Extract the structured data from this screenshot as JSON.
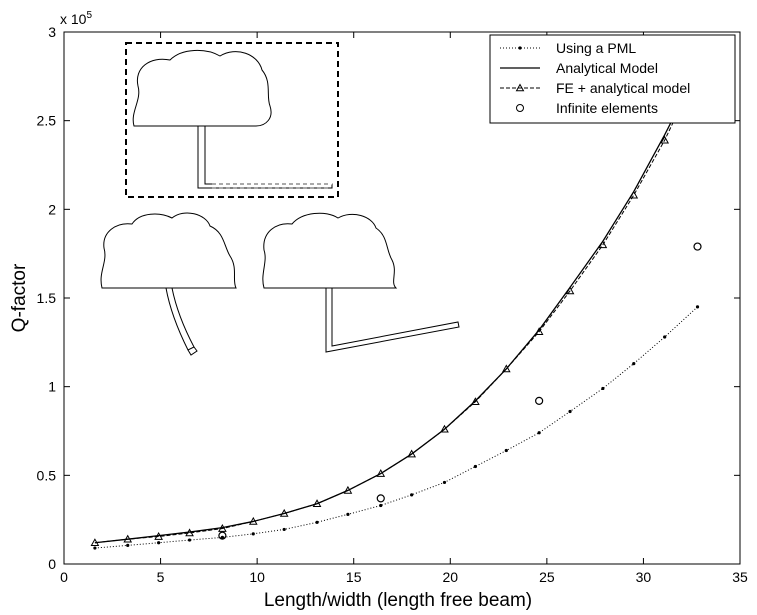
{
  "chart_data": {
    "type": "line",
    "xlabel": "Length/width (length free beam)",
    "ylabel": "Q-factor",
    "y_exponent_label": "x 10",
    "y_exponent_power": "5",
    "xlim": [
      0,
      35
    ],
    "ylim": [
      0,
      3
    ],
    "x_ticks": [
      "0",
      "5",
      "10",
      "15",
      "20",
      "25",
      "30",
      "35"
    ],
    "y_ticks": [
      "0",
      "0.5",
      "1",
      "1.5",
      "2",
      "2.5",
      "3"
    ],
    "x_tick_values": [
      0,
      5,
      10,
      15,
      20,
      25,
      30,
      35
    ],
    "y_tick_values": [
      0,
      0.5,
      1,
      1.5,
      2,
      2.5,
      3
    ],
    "grid": false,
    "legend_position": "top-right",
    "series": [
      {
        "name": "Using a PML",
        "style": "dotted-with-dots",
        "color": "#000000",
        "x": [
          1.6,
          3.3,
          4.9,
          6.5,
          8.2,
          9.8,
          11.4,
          13.1,
          14.7,
          16.4,
          18.0,
          19.7,
          21.3,
          22.9,
          24.6,
          26.2,
          27.9,
          29.5,
          31.1,
          32.8
        ],
        "y": [
          0.09,
          0.105,
          0.12,
          0.135,
          0.15,
          0.17,
          0.195,
          0.235,
          0.28,
          0.33,
          0.39,
          0.46,
          0.55,
          0.64,
          0.74,
          0.86,
          0.99,
          1.13,
          1.28,
          1.45
        ]
      },
      {
        "name": "Analytical Model",
        "style": "solid",
        "color": "#000000",
        "x": [
          1.6,
          3.3,
          4.9,
          6.5,
          8.2,
          9.8,
          11.4,
          13.1,
          14.7,
          16.4,
          18.0,
          19.7,
          21.3,
          22.9,
          24.6,
          26.2,
          27.9,
          29.5,
          31.1,
          31.8
        ],
        "y": [
          0.12,
          0.14,
          0.16,
          0.18,
          0.205,
          0.24,
          0.285,
          0.34,
          0.415,
          0.51,
          0.62,
          0.76,
          0.92,
          1.1,
          1.32,
          1.56,
          1.82,
          2.1,
          2.42,
          2.57
        ]
      },
      {
        "name": "FE + analytical model",
        "style": "dashed-with-triangles",
        "color": "#000000",
        "x": [
          1.6,
          3.3,
          4.9,
          6.5,
          8.2,
          9.8,
          11.4,
          13.1,
          14.7,
          16.4,
          18.0,
          19.7,
          21.3,
          22.9,
          24.6,
          26.2,
          27.9,
          29.5,
          31.1,
          31.8
        ],
        "y": [
          0.12,
          0.14,
          0.155,
          0.175,
          0.2,
          0.24,
          0.285,
          0.34,
          0.415,
          0.51,
          0.62,
          0.76,
          0.915,
          1.1,
          1.31,
          1.54,
          1.8,
          2.08,
          2.39,
          2.55
        ]
      },
      {
        "name": "Infinite elements",
        "style": "circles-only",
        "color": "#000000",
        "x": [
          8.2,
          16.4,
          24.6,
          32.8
        ],
        "y": [
          0.16,
          0.37,
          0.92,
          1.79
        ]
      }
    ],
    "legend": [
      "Using a PML",
      "Analytical Model",
      "FE + analytical model",
      "Infinite elements"
    ]
  }
}
